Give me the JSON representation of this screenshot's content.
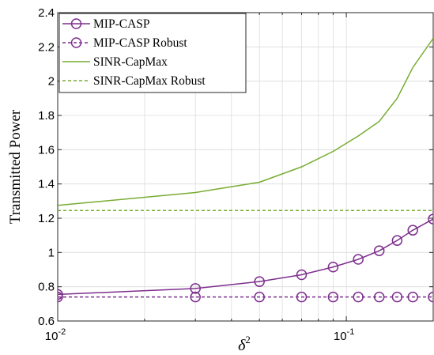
{
  "chart_data": {
    "type": "line",
    "xscale": "log",
    "xlim": [
      0.01,
      0.2
    ],
    "ylim": [
      0.6,
      2.4
    ],
    "xlabel_base": "δ",
    "xlabel_sup": "2",
    "ylabel": "Transmitted Power",
    "x_ticks": [
      {
        "value": 0.01,
        "base": "10",
        "exp": "-2"
      },
      {
        "value": 0.1,
        "base": "10",
        "exp": "-1"
      }
    ],
    "y_ticks": [
      {
        "value": 0.6,
        "label": "0.6"
      },
      {
        "value": 0.8,
        "label": "0.8"
      },
      {
        "value": 1.0,
        "label": "1"
      },
      {
        "value": 1.2,
        "label": "1.2"
      },
      {
        "value": 1.4,
        "label": "1.4"
      },
      {
        "value": 1.6,
        "label": "1.6"
      },
      {
        "value": 1.8,
        "label": "1.8"
      },
      {
        "value": 2.0,
        "label": "2"
      },
      {
        "value": 2.2,
        "label": "2.2"
      },
      {
        "value": 2.4,
        "label": "2.4"
      }
    ],
    "grid": true,
    "legend_position": "top-left",
    "series": [
      {
        "name": "MIP-CASP",
        "color": "#7e2f8e",
        "style": "solid",
        "marker": "circle",
        "x": [
          0.01,
          0.03,
          0.05,
          0.07,
          0.09,
          0.11,
          0.13,
          0.15,
          0.17,
          0.2
        ],
        "y": [
          0.755,
          0.79,
          0.83,
          0.87,
          0.915,
          0.96,
          1.01,
          1.07,
          1.13,
          1.195
        ]
      },
      {
        "name": "MIP-CASP Robust",
        "color": "#7e2f8e",
        "style": "dashed",
        "marker": "circle",
        "x": [
          0.01,
          0.03,
          0.05,
          0.07,
          0.09,
          0.11,
          0.13,
          0.15,
          0.17,
          0.2
        ],
        "y": [
          0.74,
          0.74,
          0.74,
          0.74,
          0.74,
          0.74,
          0.74,
          0.74,
          0.74,
          0.74
        ]
      },
      {
        "name": "SINR-CapMax",
        "color": "#77ac30",
        "style": "solid",
        "marker": "none",
        "x": [
          0.01,
          0.03,
          0.05,
          0.07,
          0.09,
          0.11,
          0.13,
          0.15,
          0.17,
          0.2
        ],
        "y": [
          1.275,
          1.35,
          1.41,
          1.5,
          1.59,
          1.68,
          1.765,
          1.9,
          2.08,
          2.25
        ]
      },
      {
        "name": "SINR-CapMax Robust",
        "color": "#77ac30",
        "style": "dashed",
        "marker": "none",
        "x": [
          0.01,
          0.2
        ],
        "y": [
          1.245,
          1.245
        ]
      }
    ]
  }
}
